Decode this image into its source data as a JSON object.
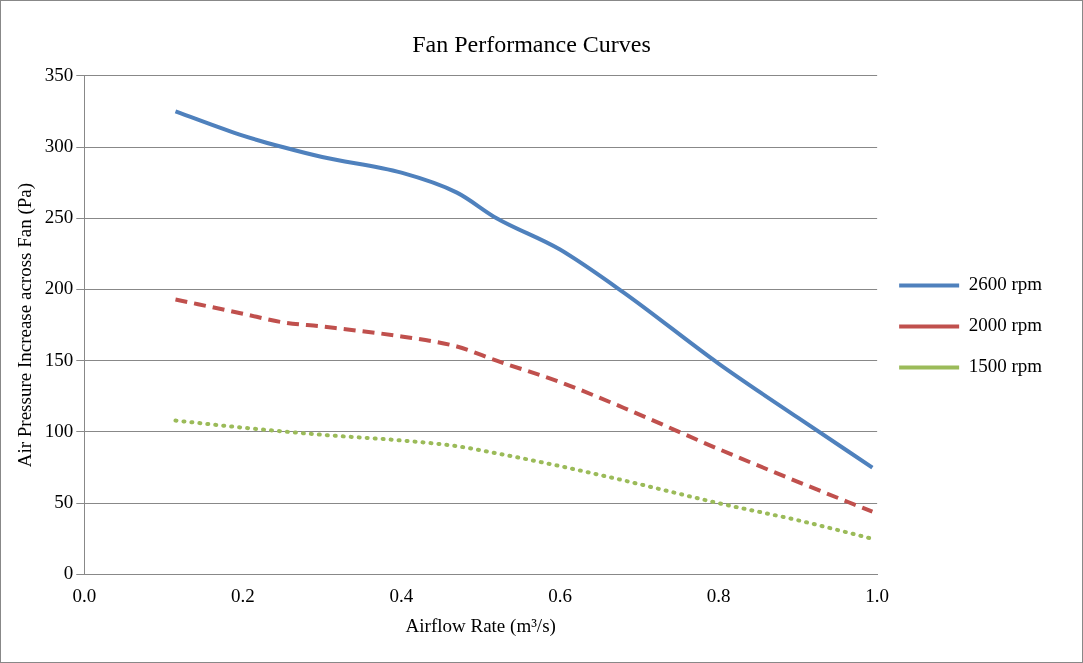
{
  "chart_data": {
    "type": "line",
    "title": "Fan Performance Curves",
    "xlabel": "Airflow Rate (m³/s)",
    "ylabel": "Air Pressure Increase across Fan (Pa)",
    "xlim": [
      0,
      1
    ],
    "xticks": [
      {
        "value": 0,
        "label": "0.0"
      },
      {
        "value": 0.2,
        "label": "0.2"
      },
      {
        "value": 0.4,
        "label": "0.4"
      },
      {
        "value": 0.6,
        "label": "0.6"
      },
      {
        "value": 0.8,
        "label": "0.8"
      },
      {
        "value": 1,
        "label": "1.0"
      }
    ],
    "ylim": [
      0,
      350
    ],
    "yticks": [
      0,
      50,
      100,
      150,
      200,
      250,
      300,
      350
    ],
    "grid": "y",
    "legend": "right",
    "series": [
      {
        "name": "2600 rpm",
        "color": "#4f81bd",
        "line_style": "solid",
        "x": [
          0.115,
          0.2,
          0.25,
          0.3,
          0.4,
          0.47,
          0.52,
          0.6,
          0.68,
          0.8,
          0.9,
          0.994
        ],
        "values": [
          325,
          308,
          300,
          293,
          282,
          268,
          250,
          228,
          198,
          148,
          110,
          75
        ]
      },
      {
        "name": "2000 rpm",
        "color": "#c0504d",
        "line_style": "dashed",
        "x": [
          0.115,
          0.2,
          0.25,
          0.3,
          0.4,
          0.47,
          0.52,
          0.6,
          0.68,
          0.8,
          0.9,
          0.994
        ],
        "values": [
          193,
          183,
          177,
          174,
          167,
          160,
          150,
          135,
          117,
          88,
          65,
          44
        ]
      },
      {
        "name": "1500 rpm",
        "color": "#9bbb59",
        "line_style": "dotted",
        "x": [
          0.115,
          0.2,
          0.3,
          0.4,
          0.47,
          0.52,
          0.6,
          0.68,
          0.8,
          0.9,
          0.994
        ],
        "values": [
          108,
          103,
          98,
          94,
          90,
          85,
          76,
          66,
          50,
          38,
          25
        ]
      }
    ]
  }
}
